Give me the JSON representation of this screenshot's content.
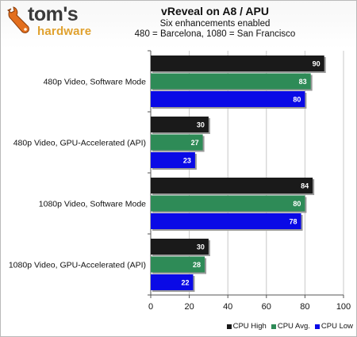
{
  "logo": {
    "brand": "tom's",
    "sub": "hardware"
  },
  "chart_data": {
    "type": "bar",
    "orientation": "horizontal",
    "title": "vReveal on A8 / APU",
    "subtitle_lines": [
      "Six enhancements enabled",
      "480 = Barcelona, 1080 = San Francisco"
    ],
    "categories": [
      "480p Video, Software Mode",
      "480p Video, GPU-Accelerated (API)",
      "1080p Video, Software Mode",
      "1080p Video, GPU-Accelerated (API)"
    ],
    "series": [
      {
        "name": "CPU High",
        "color": "#1a1a1a",
        "values": [
          90,
          30,
          84,
          30
        ]
      },
      {
        "name": "CPU Avg.",
        "color": "#2e8b57",
        "values": [
          83,
          27,
          80,
          28
        ]
      },
      {
        "name": "CPU Low",
        "color": "#0a0ae6",
        "values": [
          80,
          23,
          78,
          22
        ]
      }
    ],
    "xlim": [
      0,
      100
    ],
    "xticks": [
      0,
      20,
      40,
      60,
      80,
      100
    ],
    "grid": true,
    "legend_position": "bottom-right"
  }
}
